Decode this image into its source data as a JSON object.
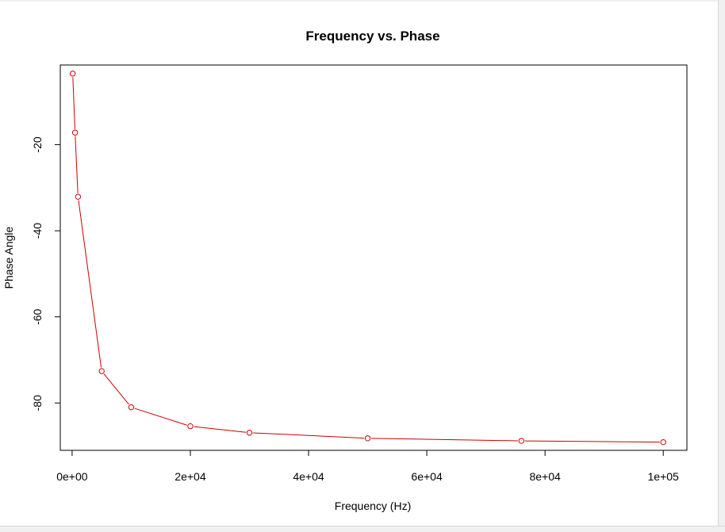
{
  "chart_data": {
    "type": "line",
    "title": "Frequency vs. Phase",
    "xlabel": "Frequency (Hz)",
    "ylabel": "Phase Angle",
    "xlim": [
      -2000,
      104000
    ],
    "ylim": [
      -91,
      -1.5
    ],
    "x_ticks": [
      {
        "value": 0,
        "label": "0e+00"
      },
      {
        "value": 20000,
        "label": "2e+04"
      },
      {
        "value": 40000,
        "label": "4e+04"
      },
      {
        "value": 60000,
        "label": "6e+04"
      },
      {
        "value": 80000,
        "label": "8e+04"
      },
      {
        "value": 100000,
        "label": "1e+05"
      }
    ],
    "y_ticks": [
      {
        "value": -20,
        "label": "-20"
      },
      {
        "value": -40,
        "label": "-40"
      },
      {
        "value": -60,
        "label": "-60"
      },
      {
        "value": -80,
        "label": "-80"
      }
    ],
    "grid": false,
    "legend": "none",
    "series": [
      {
        "color": "#cc0000",
        "marker": "open-circle",
        "x": [
          100,
          500,
          1000,
          5000,
          10000,
          20000,
          30000,
          50000,
          76000,
          100000
        ],
        "y": [
          -3.5,
          -17.2,
          -32.1,
          -72.6,
          -81.0,
          -85.4,
          -86.9,
          -88.2,
          -88.8,
          -89.1
        ]
      }
    ]
  }
}
